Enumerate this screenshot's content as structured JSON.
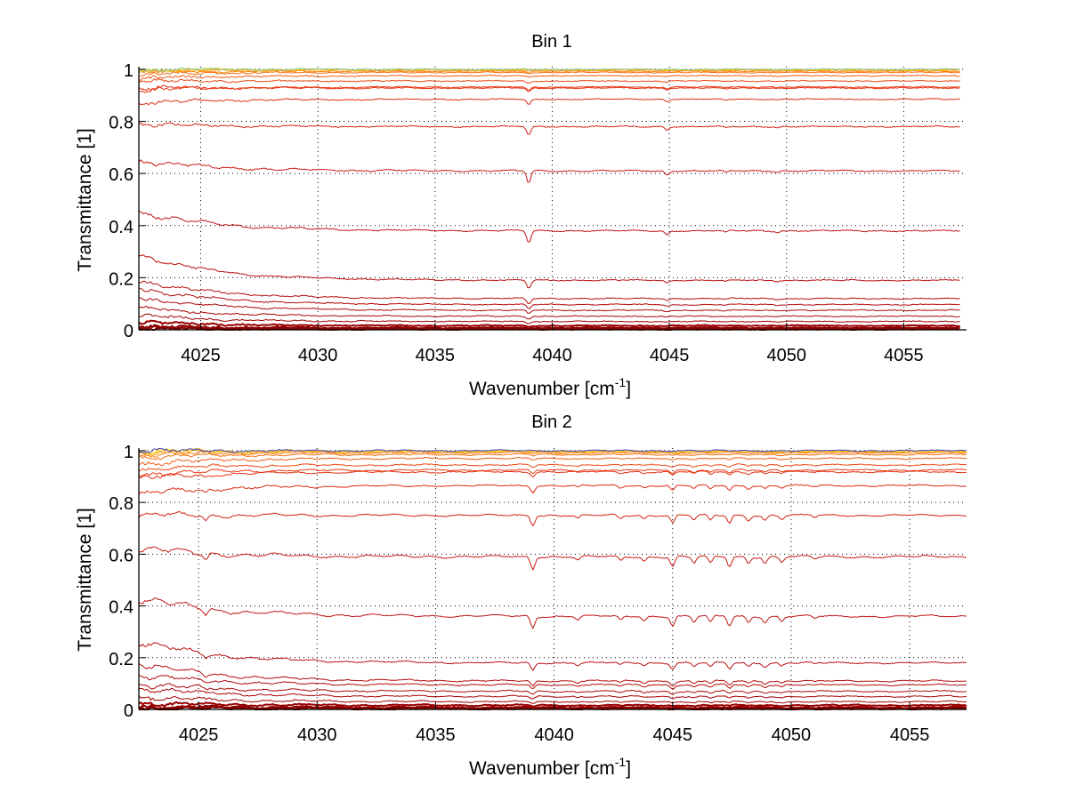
{
  "chart_data": [
    {
      "type": "line",
      "title": "Bin 1",
      "xlabel": "Wavenumber [cm",
      "xlabel_sup": "-1",
      "xlabel_end": "]",
      "ylabel": "Transmittance [1]",
      "xlim": [
        4022.36,
        4057.68
      ],
      "ylim": [
        0,
        1.01
      ],
      "grid": true,
      "xticks": [
        4025,
        4030,
        4035,
        4040,
        4045,
        4050,
        4055
      ],
      "xtick_labels": [
        "4025",
        "4030",
        "4035",
        "4040",
        "4045",
        "4050",
        "4055"
      ],
      "yticks": [
        0,
        0.2,
        0.4,
        0.6,
        0.8,
        1
      ],
      "ytick_labels": [
        "0",
        "0.2",
        "0.4",
        "0.6",
        "0.8",
        "1"
      ],
      "x_end": 4057.4,
      "absorption_lines": [
        {
          "x": 4039.0,
          "strength": 1.0
        },
        {
          "x": 4044.9,
          "strength": 0.35
        },
        {
          "x": 4047.4,
          "strength": 0.15
        },
        {
          "x": 4049.6,
          "strength": 0.12
        }
      ],
      "series": [
        {
          "name": "s1",
          "level": 0.002,
          "start": 0.004,
          "color": "#7a0000"
        },
        {
          "name": "s2",
          "level": 0.005,
          "start": 0.008,
          "color": "#8a0000"
        },
        {
          "name": "s3",
          "level": 0.008,
          "start": 0.012,
          "color": "#8f0000"
        },
        {
          "name": "s4",
          "level": 0.016,
          "start": 0.03,
          "color": "#990000"
        },
        {
          "name": "s5",
          "level": 0.032,
          "start": 0.055,
          "color": "#a00000"
        },
        {
          "name": "s6",
          "level": 0.052,
          "start": 0.085,
          "color": "#a80404"
        },
        {
          "name": "s7",
          "level": 0.075,
          "start": 0.125,
          "color": "#ad0808"
        },
        {
          "name": "s8",
          "level": 0.097,
          "start": 0.16,
          "color": "#b20a0a"
        },
        {
          "name": "s9",
          "level": 0.12,
          "start": 0.19,
          "color": "#b50c0c"
        },
        {
          "name": "s10",
          "level": 0.19,
          "start": 0.29,
          "color": "#bb1010"
        },
        {
          "name": "s11",
          "level": 0.38,
          "start": 0.455,
          "color": "#c01414"
        },
        {
          "name": "s12",
          "level": 0.61,
          "start": 0.65,
          "color": "#c81a14"
        },
        {
          "name": "s13",
          "level": 0.78,
          "start": 0.79,
          "color": "#d22014"
        },
        {
          "name": "s14",
          "level": 0.885,
          "start": 0.87,
          "color": "#dc2a14"
        },
        {
          "name": "s15",
          "level": 0.928,
          "start": 0.93,
          "color": "#e43014"
        },
        {
          "name": "s16",
          "level": 0.932,
          "start": 0.92,
          "color": "#e83a14"
        },
        {
          "name": "s17",
          "level": 0.955,
          "start": 0.955,
          "color": "#ec4814"
        },
        {
          "name": "s18",
          "level": 0.975,
          "start": 0.965,
          "color": "#f05a14"
        },
        {
          "name": "s19",
          "level": 0.988,
          "start": 0.98,
          "color": "#f46e10"
        },
        {
          "name": "s20",
          "level": 0.993,
          "start": 0.99,
          "color": "#f8820c"
        },
        {
          "name": "s21",
          "level": 0.996,
          "start": 0.995,
          "color": "#fa9a0a"
        },
        {
          "name": "s22",
          "level": 0.998,
          "start": 0.998,
          "color": "#fcb808"
        },
        {
          "name": "s23",
          "level": 0.999,
          "start": 1.0,
          "color": "#f0d840"
        },
        {
          "name": "s24",
          "level": 1.0,
          "start": 1.0,
          "color": "#88c8a0"
        }
      ]
    },
    {
      "type": "line",
      "title": "Bin 2",
      "xlabel": "Wavenumber [cm",
      "xlabel_sup": "-1",
      "xlabel_end": "]",
      "ylabel": "Transmittance [1]",
      "xlim": [
        4022.48,
        4057.4
      ],
      "ylim": [
        0,
        1.01
      ],
      "grid": true,
      "xticks": [
        4025,
        4030,
        4035,
        4040,
        4045,
        4050,
        4055
      ],
      "xtick_labels": [
        "4025",
        "4030",
        "4035",
        "4040",
        "4045",
        "4050",
        "4055"
      ],
      "yticks": [
        0,
        0.2,
        0.4,
        0.6,
        0.8,
        1
      ],
      "ytick_labels": [
        "0",
        "0.2",
        "0.4",
        "0.6",
        "0.8",
        "1"
      ],
      "x_end": 4057.4,
      "absorption_lines": [
        {
          "x": 4025.3,
          "strength": 0.5
        },
        {
          "x": 4039.1,
          "strength": 1.0
        },
        {
          "x": 4041.0,
          "strength": 0.3
        },
        {
          "x": 4042.8,
          "strength": 0.35
        },
        {
          "x": 4043.8,
          "strength": 0.35
        },
        {
          "x": 4045.0,
          "strength": 0.8
        },
        {
          "x": 4045.9,
          "strength": 0.5
        },
        {
          "x": 4046.6,
          "strength": 0.55
        },
        {
          "x": 4047.4,
          "strength": 0.8
        },
        {
          "x": 4048.2,
          "strength": 0.5
        },
        {
          "x": 4048.9,
          "strength": 0.5
        },
        {
          "x": 4049.6,
          "strength": 0.4
        },
        {
          "x": 4051.0,
          "strength": 0.2
        }
      ],
      "series": [
        {
          "name": "s1",
          "level": 0.002,
          "start": 0.004,
          "color": "#7a0000"
        },
        {
          "name": "s2",
          "level": 0.005,
          "start": 0.008,
          "color": "#8a0000"
        },
        {
          "name": "s3",
          "level": 0.008,
          "start": 0.012,
          "color": "#8f0000"
        },
        {
          "name": "s4",
          "level": 0.016,
          "start": 0.025,
          "color": "#990000"
        },
        {
          "name": "s5",
          "level": 0.03,
          "start": 0.05,
          "color": "#a00000"
        },
        {
          "name": "s6",
          "level": 0.05,
          "start": 0.085,
          "color": "#a80404"
        },
        {
          "name": "s7",
          "level": 0.07,
          "start": 0.1,
          "color": "#ad0808"
        },
        {
          "name": "s8",
          "level": 0.095,
          "start": 0.135,
          "color": "#b20a0a"
        },
        {
          "name": "s9",
          "level": 0.11,
          "start": 0.18,
          "color": "#b50c0c"
        },
        {
          "name": "s10",
          "level": 0.18,
          "start": 0.265,
          "color": "#bb1010"
        },
        {
          "name": "s11",
          "level": 0.36,
          "start": 0.43,
          "color": "#c01414"
        },
        {
          "name": "s12",
          "level": 0.59,
          "start": 0.62,
          "color": "#c81a14"
        },
        {
          "name": "s13",
          "level": 0.75,
          "start": 0.75,
          "color": "#d22014"
        },
        {
          "name": "s14",
          "level": 0.865,
          "start": 0.83,
          "color": "#dc2a14"
        },
        {
          "name": "s15",
          "level": 0.918,
          "start": 0.89,
          "color": "#e43014"
        },
        {
          "name": "s16",
          "level": 0.925,
          "start": 0.91,
          "color": "#e83a14"
        },
        {
          "name": "s17",
          "level": 0.945,
          "start": 0.93,
          "color": "#ec4814"
        },
        {
          "name": "s18",
          "level": 0.97,
          "start": 0.95,
          "color": "#f05a14"
        },
        {
          "name": "s19",
          "level": 0.985,
          "start": 0.975,
          "color": "#f46e10"
        },
        {
          "name": "s20",
          "level": 0.992,
          "start": 0.985,
          "color": "#f8820c"
        },
        {
          "name": "s21",
          "level": 0.996,
          "start": 0.995,
          "color": "#fa9a0a"
        },
        {
          "name": "s22",
          "level": 0.998,
          "start": 0.998,
          "color": "#fcc008"
        },
        {
          "name": "s23",
          "level": 0.999,
          "start": 1.0,
          "color": "#f0e040"
        },
        {
          "name": "s24",
          "level": 1.0,
          "start": 1.0,
          "color": "#4040c0"
        }
      ]
    }
  ]
}
